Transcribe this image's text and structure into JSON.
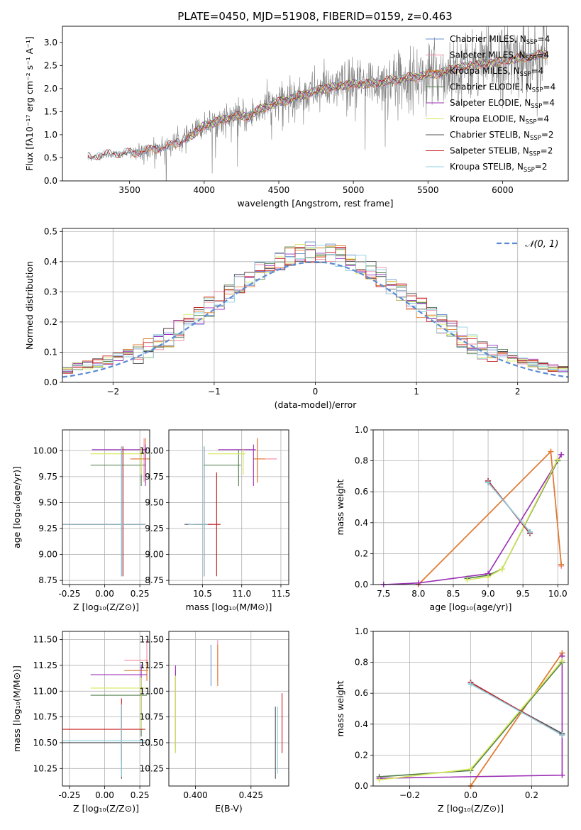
{
  "figure_title": "PLATE=0450, MJD=51908, FIBERID=0159, z=0.463",
  "colors": {
    "Chabrier MILES": "#6a8fd1",
    "Salpeter MILES": "#f08aa0",
    "Kroupa MILES": "#e07b2a",
    "Chabrier ELODIE": "#4f7d4a",
    "Salpeter ELODIE": "#9b2fb5",
    "Kroupa ELODIE": "#d6e85a",
    "Chabrier STELIB": "#555555",
    "Salpeter STELIB": "#c41e1e",
    "Kroupa STELIB": "#8fd0e0",
    "data": "#808080",
    "gaussian": "#5b8bd4"
  },
  "chart_data": [
    {
      "type": "line",
      "panel": "spectrum",
      "xlabel": "wavelength [Angstrom, rest frame]",
      "ylabel": "Flux [fλ10⁻¹⁷ erg cm⁻² s⁻¹ A⁻¹]",
      "xlim": [
        3050,
        6440
      ],
      "ylim": [
        0,
        3.35
      ],
      "xticks": [
        3500,
        4000,
        4500,
        5000,
        5500,
        6000
      ],
      "yticks": [
        0.0,
        0.5,
        1.0,
        1.5,
        2.0,
        2.5,
        3.0
      ],
      "grid": false,
      "legend_position": "upper-right",
      "legend": [
        {
          "key": "Chabrier MILES",
          "label": "Chabrier MILES, N_SSP=4"
        },
        {
          "key": "Salpeter MILES",
          "label": "Salpeter MILES, N_SSP=4"
        },
        {
          "key": "Kroupa MILES",
          "label": "Kroupa MILES, N_SSP=4"
        },
        {
          "key": "Chabrier ELODIE",
          "label": "Chabrier ELODIE, N_SSP=4"
        },
        {
          "key": "Salpeter ELODIE",
          "label": "Salpeter ELODIE, N_SSP=4"
        },
        {
          "key": "Kroupa ELODIE",
          "label": "Kroupa ELODIE, N_SSP=4"
        },
        {
          "key": "Chabrier STELIB",
          "label": "Chabrier STELIB, N_SSP=2"
        },
        {
          "key": "Salpeter STELIB",
          "label": "Salpeter STELIB, N_SSP=2"
        },
        {
          "key": "Kroupa STELIB",
          "label": "Kroupa STELIB, N_SSP=2"
        }
      ],
      "model_continuum": {
        "x": [
          3220,
          3300,
          3400,
          3500,
          3600,
          3700,
          3800,
          3900,
          4000,
          4100,
          4200,
          4300,
          4400,
          4500,
          4600,
          4700,
          4800,
          4900,
          5000,
          5100,
          5200,
          5300,
          5400,
          5500,
          5600,
          5700,
          5800,
          5900,
          6000,
          6100,
          6200,
          6300
        ],
        "y": [
          0.5,
          0.55,
          0.58,
          0.6,
          0.65,
          0.72,
          0.8,
          0.95,
          1.2,
          1.3,
          1.4,
          1.4,
          1.6,
          1.7,
          1.8,
          1.9,
          2.0,
          2.05,
          2.1,
          2.1,
          2.15,
          2.2,
          2.25,
          2.3,
          2.35,
          2.45,
          2.5,
          2.55,
          2.6,
          2.65,
          2.7,
          2.75
        ]
      },
      "model_starts": {
        "Chabrier MILES": 3520,
        "Salpeter MILES": 3520,
        "Kroupa MILES": 3520,
        "Chabrier ELODIE": 3900,
        "Salpeter ELODIE": 3900,
        "Kroupa ELODIE": 3900,
        "Chabrier STELIB": 3220,
        "Salpeter STELIB": 3220,
        "Kroupa STELIB": 3220
      },
      "data_range": [
        3220,
        6300
      ]
    },
    {
      "type": "histogram",
      "panel": "residuals",
      "xlabel": "(data-model)/error",
      "ylabel": "Normed distribution",
      "xlim": [
        -2.5,
        2.5
      ],
      "ylim": [
        0,
        0.51
      ],
      "xticks": [
        -2,
        -1,
        0,
        1,
        2
      ],
      "yticks": [
        0.0,
        0.1,
        0.2,
        0.3,
        0.4,
        0.5
      ],
      "grid": true,
      "legend_position": "upper-right",
      "gaussian_label": "𝒩(0, 1)",
      "bin_width": 0.1
    },
    {
      "type": "scatter",
      "panel": "age-vs-Z",
      "xlabel": "Z [log₁₀(Z/Z⊙)]",
      "ylabel": "age  [log₁₀(age/yr)]",
      "xlim": [
        -0.3,
        0.32
      ],
      "ylim": [
        8.71,
        10.2
      ],
      "xticks": [
        -0.25,
        0.0,
        0.25
      ],
      "yticks": [
        8.75,
        9.0,
        9.25,
        9.5,
        9.75,
        10.0
      ],
      "grid": true,
      "points": [
        {
          "key": "Chabrier MILES",
          "x": 0.13,
          "y": 9.29,
          "xerr": [
            0.43,
            0.16
          ],
          "yerr": [
            0.5,
            0.75
          ]
        },
        {
          "key": "Salpeter MILES",
          "x": 0.28,
          "y": 9.92,
          "xerr": [
            0.1,
            0.05
          ],
          "yerr": [
            0.22,
            0.2
          ]
        },
        {
          "key": "Kroupa MILES",
          "x": 0.29,
          "y": 9.92,
          "xerr": [
            0.1,
            0.03
          ],
          "yerr": [
            0.23,
            0.2
          ]
        },
        {
          "key": "Chabrier ELODIE",
          "x": 0.26,
          "y": 9.86,
          "xerr": [
            0.36,
            0.03
          ],
          "yerr": [
            0.2,
            0.15
          ]
        },
        {
          "key": "Salpeter ELODIE",
          "x": 0.29,
          "y": 10.01,
          "xerr": [
            0.38,
            0.01
          ],
          "yerr": [
            0.35,
            0.05
          ]
        },
        {
          "key": "Kroupa ELODIE",
          "x": 0.26,
          "y": 9.97,
          "xerr": [
            0.36,
            0.03
          ],
          "yerr": [
            0.2,
            0.05
          ]
        },
        {
          "key": "Chabrier STELIB",
          "x": 0.12,
          "y": 9.29,
          "xerr": [
            0.42,
            0.17
          ],
          "yerr": [
            0.5,
            0.75
          ]
        },
        {
          "key": "Salpeter STELIB",
          "x": 0.13,
          "y": 9.29,
          "xerr": [
            0.43,
            0.16
          ],
          "yerr": [
            0.5,
            0.75
          ]
        },
        {
          "key": "Kroupa STELIB",
          "x": 0.12,
          "y": 9.29,
          "xerr": [
            0.42,
            0.17
          ],
          "yerr": [
            0.5,
            0.75
          ]
        }
      ]
    },
    {
      "type": "scatter",
      "panel": "age-vs-mass",
      "xlabel": "mass [log₁₀(M/M⊙)]",
      "ylabel": "",
      "xlim": [
        10.07,
        11.6
      ],
      "ylim": [
        8.71,
        10.2
      ],
      "xticks": [
        10.5,
        11.0,
        11.5
      ],
      "yticks": [
        8.75,
        9.0,
        9.25,
        9.5,
        9.75,
        10.0
      ],
      "grid": true,
      "points": [
        {
          "key": "Chabrier MILES",
          "x": 10.52,
          "y": 9.29,
          "xerr": [
            0.1,
            0.1
          ],
          "yerr": [
            0.5,
            0.75
          ]
        },
        {
          "key": "Salpeter MILES",
          "x": 11.2,
          "y": 9.92,
          "xerr": [
            0.05,
            0.25
          ],
          "yerr": [
            0.22,
            0.2
          ]
        },
        {
          "key": "Kroupa MILES",
          "x": 11.2,
          "y": 9.92,
          "xerr": [
            0.05,
            0.1
          ],
          "yerr": [
            0.23,
            0.2
          ]
        },
        {
          "key": "Chabrier ELODIE",
          "x": 10.96,
          "y": 9.86,
          "xerr": [
            0.45,
            0.03
          ],
          "yerr": [
            0.2,
            0.15
          ]
        },
        {
          "key": "Salpeter ELODIE",
          "x": 11.15,
          "y": 10.01,
          "xerr": [
            0.45,
            0.03
          ],
          "yerr": [
            0.35,
            0.05
          ]
        },
        {
          "key": "Kroupa ELODIE",
          "x": 11.02,
          "y": 9.97,
          "xerr": [
            0.45,
            0.03
          ],
          "yerr": [
            0.2,
            0.05
          ]
        },
        {
          "key": "Chabrier STELIB",
          "x": 10.52,
          "y": 9.29,
          "xerr": [
            0.25,
            0.05
          ],
          "yerr": [
            0.5,
            0.75
          ]
        },
        {
          "key": "Salpeter STELIB",
          "x": 10.68,
          "y": 9.29,
          "xerr": [
            0.3,
            0.05
          ],
          "yerr": [
            0.5,
            0.5
          ]
        },
        {
          "key": "Kroupa STELIB",
          "x": 10.52,
          "y": 9.29,
          "xerr": [
            0.2,
            0.05
          ],
          "yerr": [
            0.5,
            0.75
          ]
        }
      ]
    },
    {
      "type": "line",
      "panel": "weight-vs-age",
      "xlabel": "age  [log₁₀(age/yr)]",
      "ylabel": "mass weight",
      "xlim": [
        7.35,
        10.15
      ],
      "ylim": [
        0,
        1.0
      ],
      "xticks": [
        7.5,
        8.0,
        8.5,
        9.0,
        9.5,
        10.0
      ],
      "yticks": [
        0.0,
        0.2,
        0.4,
        0.6,
        0.8,
        1.0
      ],
      "grid": true,
      "series": [
        {
          "key": "Chabrier MILES",
          "x": [
            9.0,
            9.6
          ],
          "y": [
            0.67,
            0.33
          ]
        },
        {
          "key": "Salpeter MILES",
          "x": [
            8.0,
            9.9,
            10.05
          ],
          "y": [
            0.0,
            0.86,
            0.12
          ]
        },
        {
          "key": "Kroupa MILES",
          "x": [
            8.0,
            9.9,
            10.05
          ],
          "y": [
            0.0,
            0.86,
            0.13
          ]
        },
        {
          "key": "Chabrier ELODIE",
          "x": [
            8.7,
            9.0,
            9.2,
            10.0
          ],
          "y": [
            0.04,
            0.06,
            0.1,
            0.8
          ]
        },
        {
          "key": "Salpeter ELODIE",
          "x": [
            7.5,
            8.0,
            9.0,
            10.05
          ],
          "y": [
            0.0,
            0.01,
            0.07,
            0.84
          ]
        },
        {
          "key": "Kroupa ELODIE",
          "x": [
            8.7,
            9.0,
            9.2,
            10.0
          ],
          "y": [
            0.03,
            0.05,
            0.1,
            0.81
          ]
        },
        {
          "key": "Chabrier STELIB",
          "x": [
            9.0,
            9.6
          ],
          "y": [
            0.66,
            0.34
          ]
        },
        {
          "key": "Salpeter STELIB",
          "x": [
            9.0,
            9.6
          ],
          "y": [
            0.67,
            0.33
          ]
        },
        {
          "key": "Kroupa STELIB",
          "x": [
            9.0,
            9.6
          ],
          "y": [
            0.66,
            0.34
          ]
        }
      ]
    },
    {
      "type": "scatter",
      "panel": "mass-vs-Z",
      "xlabel": "Z [log₁₀(Z/Z⊙)]",
      "ylabel": "mass [log₁₀(M/M⊙)]",
      "xlim": [
        -0.3,
        0.32
      ],
      "ylim": [
        10.08,
        11.58
      ],
      "xticks": [
        -0.25,
        0.0,
        0.25
      ],
      "yticks": [
        10.25,
        10.5,
        10.75,
        11.0,
        11.25,
        11.5
      ],
      "grid": true,
      "points": [
        {
          "key": "Chabrier MILES",
          "x": 0.12,
          "y": 10.5,
          "xerr": [
            0.42,
            0.17
          ],
          "yerr": [
            0.2,
            0.2
          ]
        },
        {
          "key": "Salpeter MILES",
          "x": 0.3,
          "y": 11.3,
          "xerr": [
            0.16,
            0.01
          ],
          "yerr": [
            0.2,
            0.2
          ]
        },
        {
          "key": "Kroupa MILES",
          "x": 0.3,
          "y": 11.2,
          "xerr": [
            0.16,
            0.01
          ],
          "yerr": [
            0.1,
            0.1
          ]
        },
        {
          "key": "Chabrier ELODIE",
          "x": 0.26,
          "y": 10.96,
          "xerr": [
            0.36,
            0.04
          ],
          "yerr": [
            0.4,
            0.17
          ]
        },
        {
          "key": "Salpeter ELODIE",
          "x": 0.26,
          "y": 11.16,
          "xerr": [
            0.36,
            0.04
          ],
          "yerr": [
            0.4,
            0.1
          ]
        },
        {
          "key": "Kroupa ELODIE",
          "x": 0.26,
          "y": 11.03,
          "xerr": [
            0.36,
            0.04
          ],
          "yerr": [
            0.4,
            0.1
          ]
        },
        {
          "key": "Chabrier STELIB",
          "x": 0.12,
          "y": 10.5,
          "xerr": [
            0.42,
            0.17
          ],
          "yerr": [
            0.35,
            0.35
          ]
        },
        {
          "key": "Salpeter STELIB",
          "x": 0.12,
          "y": 10.63,
          "xerr": [
            0.42,
            0.17
          ],
          "yerr": [
            0.3,
            0.3
          ]
        },
        {
          "key": "Kroupa STELIB",
          "x": 0.12,
          "y": 10.52,
          "xerr": [
            0.42,
            0.17
          ],
          "yerr": [
            0.35,
            0.35
          ]
        }
      ]
    },
    {
      "type": "scatter",
      "panel": "mass-vs-EBV",
      "xlabel": "E(B-V)",
      "ylabel": "",
      "xlim": [
        0.388,
        0.442
      ],
      "ylim": [
        10.08,
        11.58
      ],
      "xticks": [
        0.4,
        0.425
      ],
      "yticks": [
        10.25,
        10.5,
        10.75,
        11.0,
        11.25,
        11.5
      ],
      "grid": true,
      "points": [
        {
          "key": "Chabrier MILES",
          "x": 0.407,
          "y": 11.25,
          "xerr": [
            0,
            0
          ],
          "yerr": [
            0.2,
            0.2
          ]
        },
        {
          "key": "Salpeter MILES",
          "x": 0.41,
          "y": 11.3,
          "xerr": [
            0,
            0
          ],
          "yerr": [
            0.2,
            0.2
          ]
        },
        {
          "key": "Kroupa MILES",
          "x": 0.41,
          "y": 11.25,
          "xerr": [
            0,
            0
          ],
          "yerr": [
            0.2,
            0.2
          ]
        },
        {
          "key": "Chabrier ELODIE",
          "x": 0.391,
          "y": 10.85,
          "xerr": [
            0,
            0
          ],
          "yerr": [
            0.45,
            0.35
          ]
        },
        {
          "key": "Salpeter ELODIE",
          "x": 0.391,
          "y": 10.9,
          "xerr": [
            0,
            0
          ],
          "yerr": [
            0.45,
            0.35
          ]
        },
        {
          "key": "Kroupa ELODIE",
          "x": 0.391,
          "y": 10.8,
          "xerr": [
            0,
            0
          ],
          "yerr": [
            0.4,
            0.35
          ]
        },
        {
          "key": "Chabrier STELIB",
          "x": 0.436,
          "y": 10.5,
          "xerr": [
            0,
            0
          ],
          "yerr": [
            0.35,
            0.35
          ]
        },
        {
          "key": "Salpeter STELIB",
          "x": 0.439,
          "y": 10.7,
          "xerr": [
            0,
            0
          ],
          "yerr": [
            0.3,
            0.28
          ]
        },
        {
          "key": "Kroupa STELIB",
          "x": 0.437,
          "y": 10.55,
          "xerr": [
            0,
            0
          ],
          "yerr": [
            0.35,
            0.3
          ]
        }
      ]
    },
    {
      "type": "line",
      "panel": "weight-vs-Z",
      "xlabel": "Z [log₁₀(Z/Z⊙)]",
      "ylabel": "mass weight",
      "xlim": [
        -0.32,
        0.32
      ],
      "ylim": [
        0,
        1.0
      ],
      "xticks": [
        -0.2,
        0.0,
        0.2
      ],
      "yticks": [
        0.0,
        0.2,
        0.4,
        0.6,
        0.8,
        1.0
      ],
      "grid": true,
      "series": [
        {
          "key": "Chabrier MILES",
          "x": [
            0.0,
            0.3
          ],
          "y": [
            0.67,
            0.33
          ]
        },
        {
          "key": "Salpeter MILES",
          "x": [
            0.0,
            0.3
          ],
          "y": [
            0.0,
            0.86
          ]
        },
        {
          "key": "Kroupa MILES",
          "x": [
            0.0,
            0.3
          ],
          "y": [
            0.0,
            0.86
          ]
        },
        {
          "key": "Chabrier ELODIE",
          "x": [
            -0.3,
            0.0,
            0.3
          ],
          "y": [
            0.06,
            0.1,
            0.8
          ]
        },
        {
          "key": "Salpeter ELODIE",
          "x": [
            -0.3,
            0.3,
            0.3
          ],
          "y": [
            0.05,
            0.07,
            0.84
          ]
        },
        {
          "key": "Kroupa ELODIE",
          "x": [
            -0.3,
            0.0,
            0.3
          ],
          "y": [
            0.04,
            0.11,
            0.81
          ]
        },
        {
          "key": "Chabrier STELIB",
          "x": [
            0.0,
            0.3
          ],
          "y": [
            0.66,
            0.34
          ]
        },
        {
          "key": "Salpeter STELIB",
          "x": [
            0.0,
            0.3
          ],
          "y": [
            0.67,
            0.33
          ]
        },
        {
          "key": "Kroupa STELIB",
          "x": [
            0.0,
            0.3
          ],
          "y": [
            0.66,
            0.33
          ]
        }
      ]
    }
  ]
}
